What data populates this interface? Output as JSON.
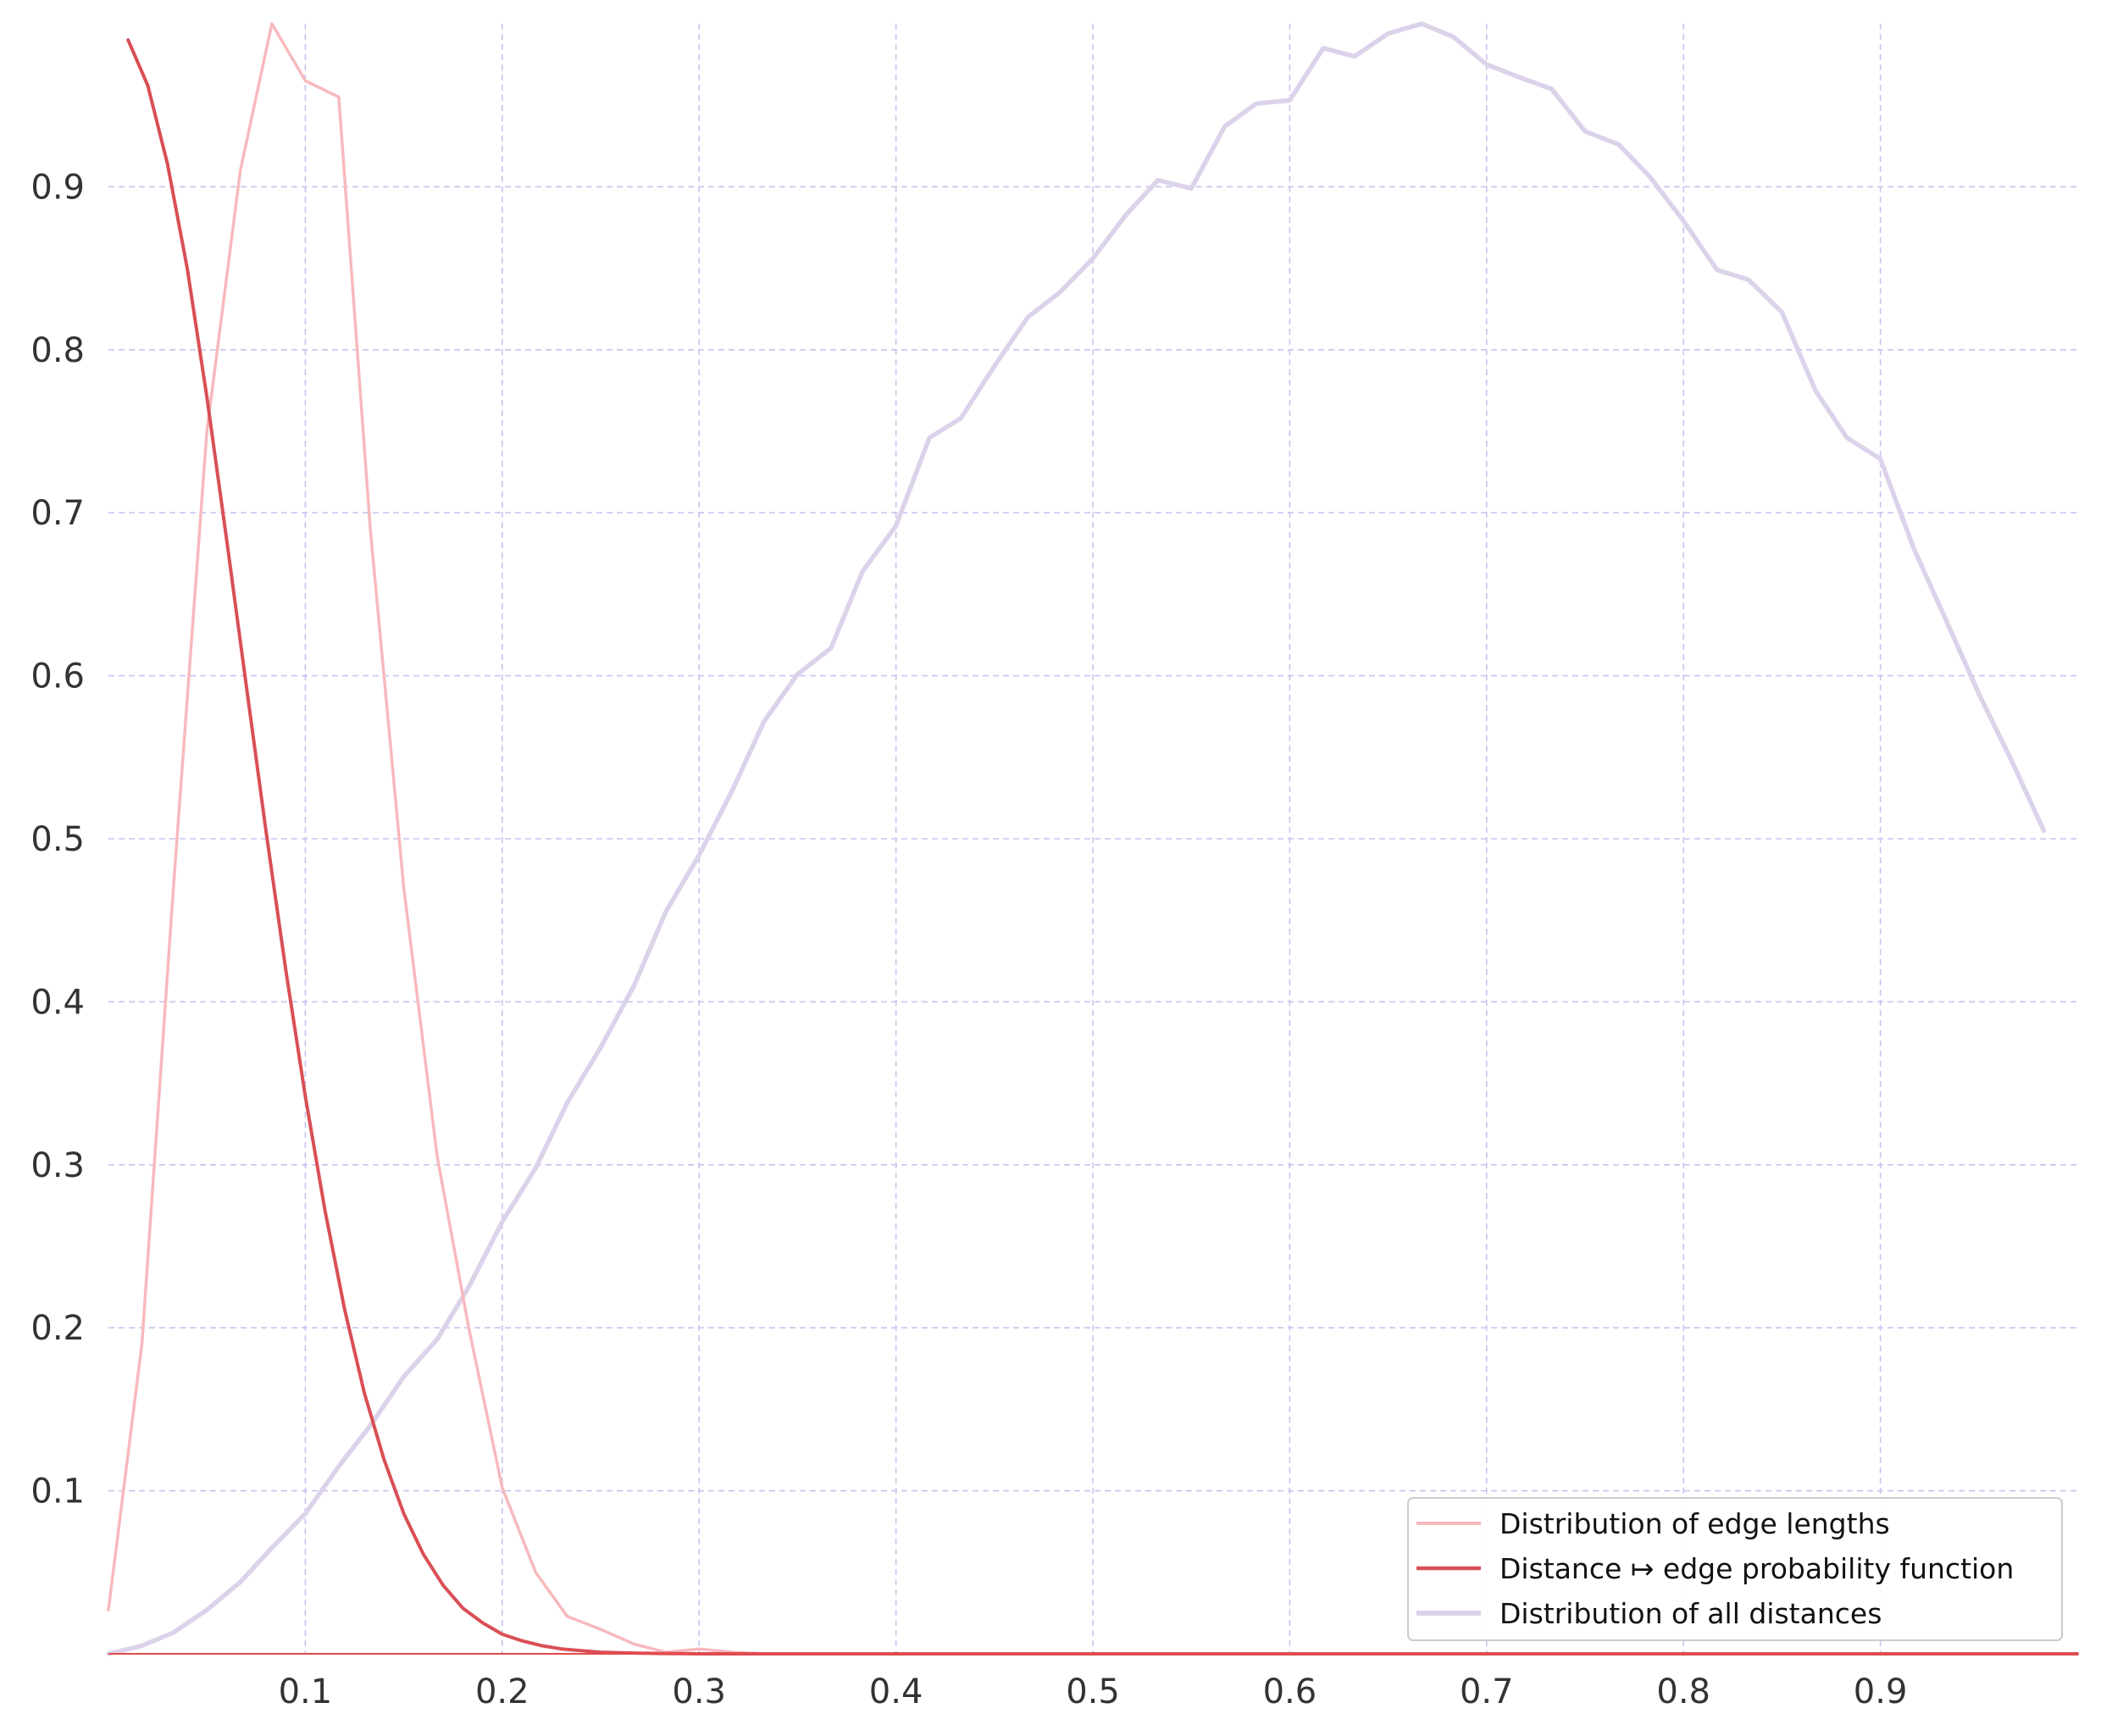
{
  "chart_data": {
    "type": "line",
    "xlim": [
      0.0,
      1.0
    ],
    "ylim": [
      0.0,
      1.0
    ],
    "xticks": [
      "0.1",
      "0.2",
      "0.3",
      "0.4",
      "0.5",
      "0.6",
      "0.7",
      "0.8",
      "0.9"
    ],
    "xtick_values": [
      0.1,
      0.2,
      0.3,
      0.4,
      0.5,
      0.6,
      0.7,
      0.8,
      0.9
    ],
    "yticks": [
      "0.1",
      "0.2",
      "0.3",
      "0.4",
      "0.5",
      "0.6",
      "0.7",
      "0.8",
      "0.9"
    ],
    "ytick_values": [
      0.1,
      0.2,
      0.3,
      0.4,
      0.5,
      0.6,
      0.7,
      0.8,
      0.9
    ],
    "grid": true,
    "legend_position": "bottom-right",
    "series": [
      {
        "name": "Distribution of edge lengths",
        "color": "#f7b9bd",
        "width": 3.5,
        "x": [
          0.0,
          0.017,
          0.033,
          0.05,
          0.067,
          0.083,
          0.1,
          0.117,
          0.133,
          0.15,
          0.167,
          0.183,
          0.2,
          0.217,
          0.233,
          0.25,
          0.267,
          0.283,
          0.3,
          0.317,
          0.333,
          0.35,
          0.4,
          0.5,
          0.6,
          0.7,
          0.8,
          0.9,
          1.0
        ],
        "y": [
          0.027,
          0.19,
          0.47,
          0.75,
          0.91,
          1.0,
          0.965,
          0.955,
          0.69,
          0.47,
          0.305,
          0.2,
          0.102,
          0.05,
          0.023,
          0.015,
          0.006,
          0.001,
          0.003,
          0.001,
          0.0,
          0.0,
          0.0,
          0.0,
          0.0,
          0.0,
          0.0,
          0.0,
          0.0
        ]
      },
      {
        "name": "Distance ↦ edge probability function",
        "color": "#d94f55",
        "width": 4,
        "x": [
          0.01,
          0.02,
          0.03,
          0.04,
          0.05,
          0.06,
          0.07,
          0.08,
          0.09,
          0.1,
          0.11,
          0.12,
          0.13,
          0.14,
          0.15,
          0.16,
          0.17,
          0.18,
          0.19,
          0.2,
          0.21,
          0.22,
          0.23,
          0.24,
          0.25,
          0.26,
          0.27,
          0.28,
          0.29,
          0.3,
          0.32,
          0.35,
          0.4,
          0.5,
          0.6,
          0.7,
          0.8,
          0.9,
          1.0
        ],
        "y": [
          0.99,
          0.962,
          0.914,
          0.85,
          0.771,
          0.684,
          0.594,
          0.505,
          0.42,
          0.342,
          0.272,
          0.211,
          0.16,
          0.119,
          0.086,
          0.061,
          0.042,
          0.028,
          0.019,
          0.012,
          0.008,
          0.005,
          0.003,
          0.002,
          0.001,
          0.0006,
          0.0004,
          0.0002,
          0.0001,
          0.0,
          0.0,
          0.0,
          0.0,
          0.0,
          0.0,
          0.0,
          0.0,
          0.0,
          0.0
        ]
      },
      {
        "name": "Distribution of all distances",
        "color": "#dcd2ea",
        "width": 5.5,
        "x": [
          0.0,
          0.017,
          0.033,
          0.05,
          0.067,
          0.083,
          0.1,
          0.117,
          0.133,
          0.15,
          0.167,
          0.183,
          0.2,
          0.217,
          0.233,
          0.25,
          0.267,
          0.283,
          0.3,
          0.317,
          0.333,
          0.35,
          0.367,
          0.383,
          0.4,
          0.417,
          0.433,
          0.45,
          0.467,
          0.483,
          0.5,
          0.517,
          0.533,
          0.55,
          0.567,
          0.583,
          0.6,
          0.617,
          0.633,
          0.65,
          0.667,
          0.683,
          0.7,
          0.717,
          0.733,
          0.75,
          0.767,
          0.783,
          0.8,
          0.817,
          0.833,
          0.85,
          0.867,
          0.883,
          0.9,
          0.917,
          0.933,
          0.95,
          0.967,
          0.983
        ],
        "y": [
          0.0,
          0.005,
          0.013,
          0.027,
          0.044,
          0.065,
          0.086,
          0.115,
          0.14,
          0.17,
          0.193,
          0.225,
          0.265,
          0.298,
          0.338,
          0.372,
          0.41,
          0.455,
          0.49,
          0.53,
          0.572,
          0.601,
          0.617,
          0.664,
          0.692,
          0.746,
          0.758,
          0.79,
          0.82,
          0.835,
          0.856,
          0.883,
          0.904,
          0.899,
          0.937,
          0.951,
          0.953,
          0.985,
          0.98,
          0.994,
          1.0,
          0.992,
          0.975,
          0.967,
          0.96,
          0.934,
          0.926,
          0.906,
          0.879,
          0.849,
          0.843,
          0.823,
          0.775,
          0.746,
          0.733,
          0.678,
          0.635,
          0.589,
          0.547,
          0.505
        ]
      }
    ]
  }
}
